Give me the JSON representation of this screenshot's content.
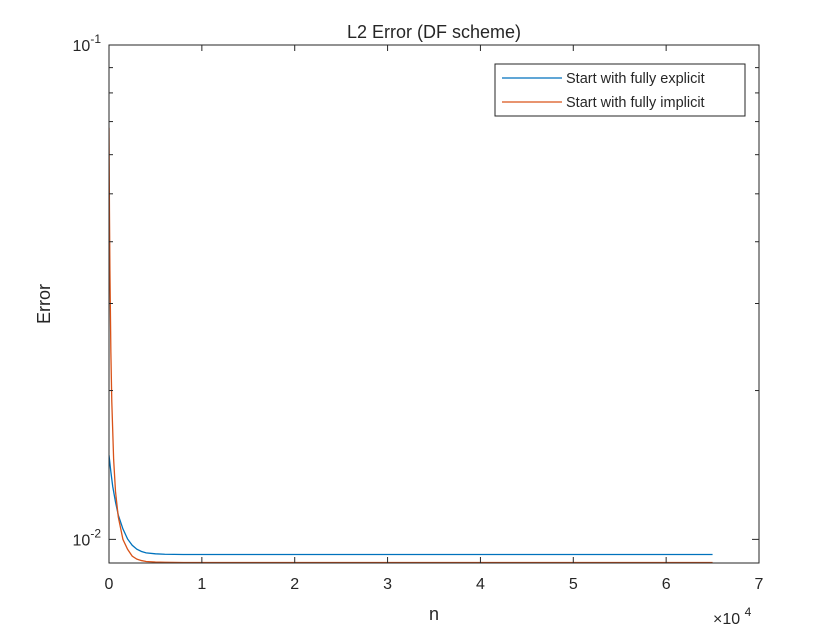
{
  "chart_data": {
    "type": "line",
    "title": "L2 Error (DF scheme)",
    "xlabel": "n",
    "ylabel": "Error",
    "x_scale": "linear",
    "y_scale": "log",
    "xlim": [
      0,
      70000
    ],
    "ylim": [
      0.008958,
      0.1
    ],
    "x_ticks": [
      0,
      10000,
      20000,
      30000,
      40000,
      50000,
      60000,
      70000
    ],
    "x_tick_labels": [
      "0",
      "1",
      "2",
      "3",
      "4",
      "5",
      "6",
      "7"
    ],
    "x_exponent_label": {
      "base": "×10",
      "exp": "4"
    },
    "y_ticks": [
      {
        "value": 0.1,
        "base": "10",
        "exp": "-1"
      },
      {
        "value": 0.01,
        "base": "10",
        "exp": "-2"
      }
    ],
    "y_minor_ticks": [
      0.02,
      0.03,
      0.04,
      0.05,
      0.06,
      0.07,
      0.08,
      0.09
    ],
    "grid": false,
    "legend_position": "top-right",
    "series": [
      {
        "name": "Start with fully explicit",
        "color": "#0072BD",
        "x": [
          0,
          200,
          400,
          700,
          1000,
          1500,
          2000,
          2500,
          3000,
          3500,
          4000,
          5000,
          6000,
          8000,
          10000,
          20000,
          30000,
          40000,
          50000,
          60000,
          65000
        ],
        "y": [
          0.0148,
          0.0137,
          0.0128,
          0.0119,
          0.0112,
          0.0105,
          0.01002,
          0.00973,
          0.00955,
          0.00945,
          0.00939,
          0.00935,
          0.00933,
          0.00932,
          0.00932,
          0.00932,
          0.00932,
          0.00932,
          0.00932,
          0.00932,
          0.00932
        ]
      },
      {
        "name": "Start with fully implicit",
        "color": "#D95319",
        "x": [
          0,
          50,
          100,
          200,
          300,
          500,
          700,
          1000,
          1500,
          2000,
          2500,
          3000,
          3500,
          4000,
          5000,
          6000,
          8000,
          10000,
          20000,
          30000,
          40000,
          50000,
          60000,
          65000
        ],
        "y": [
          0.068,
          0.046,
          0.035,
          0.024,
          0.019,
          0.0145,
          0.0125,
          0.0111,
          0.01,
          0.00955,
          0.00925,
          0.00912,
          0.00906,
          0.00902,
          0.009,
          0.00899,
          0.00898,
          0.00898,
          0.00898,
          0.00898,
          0.00898,
          0.00898,
          0.00898,
          0.00898
        ]
      }
    ]
  }
}
